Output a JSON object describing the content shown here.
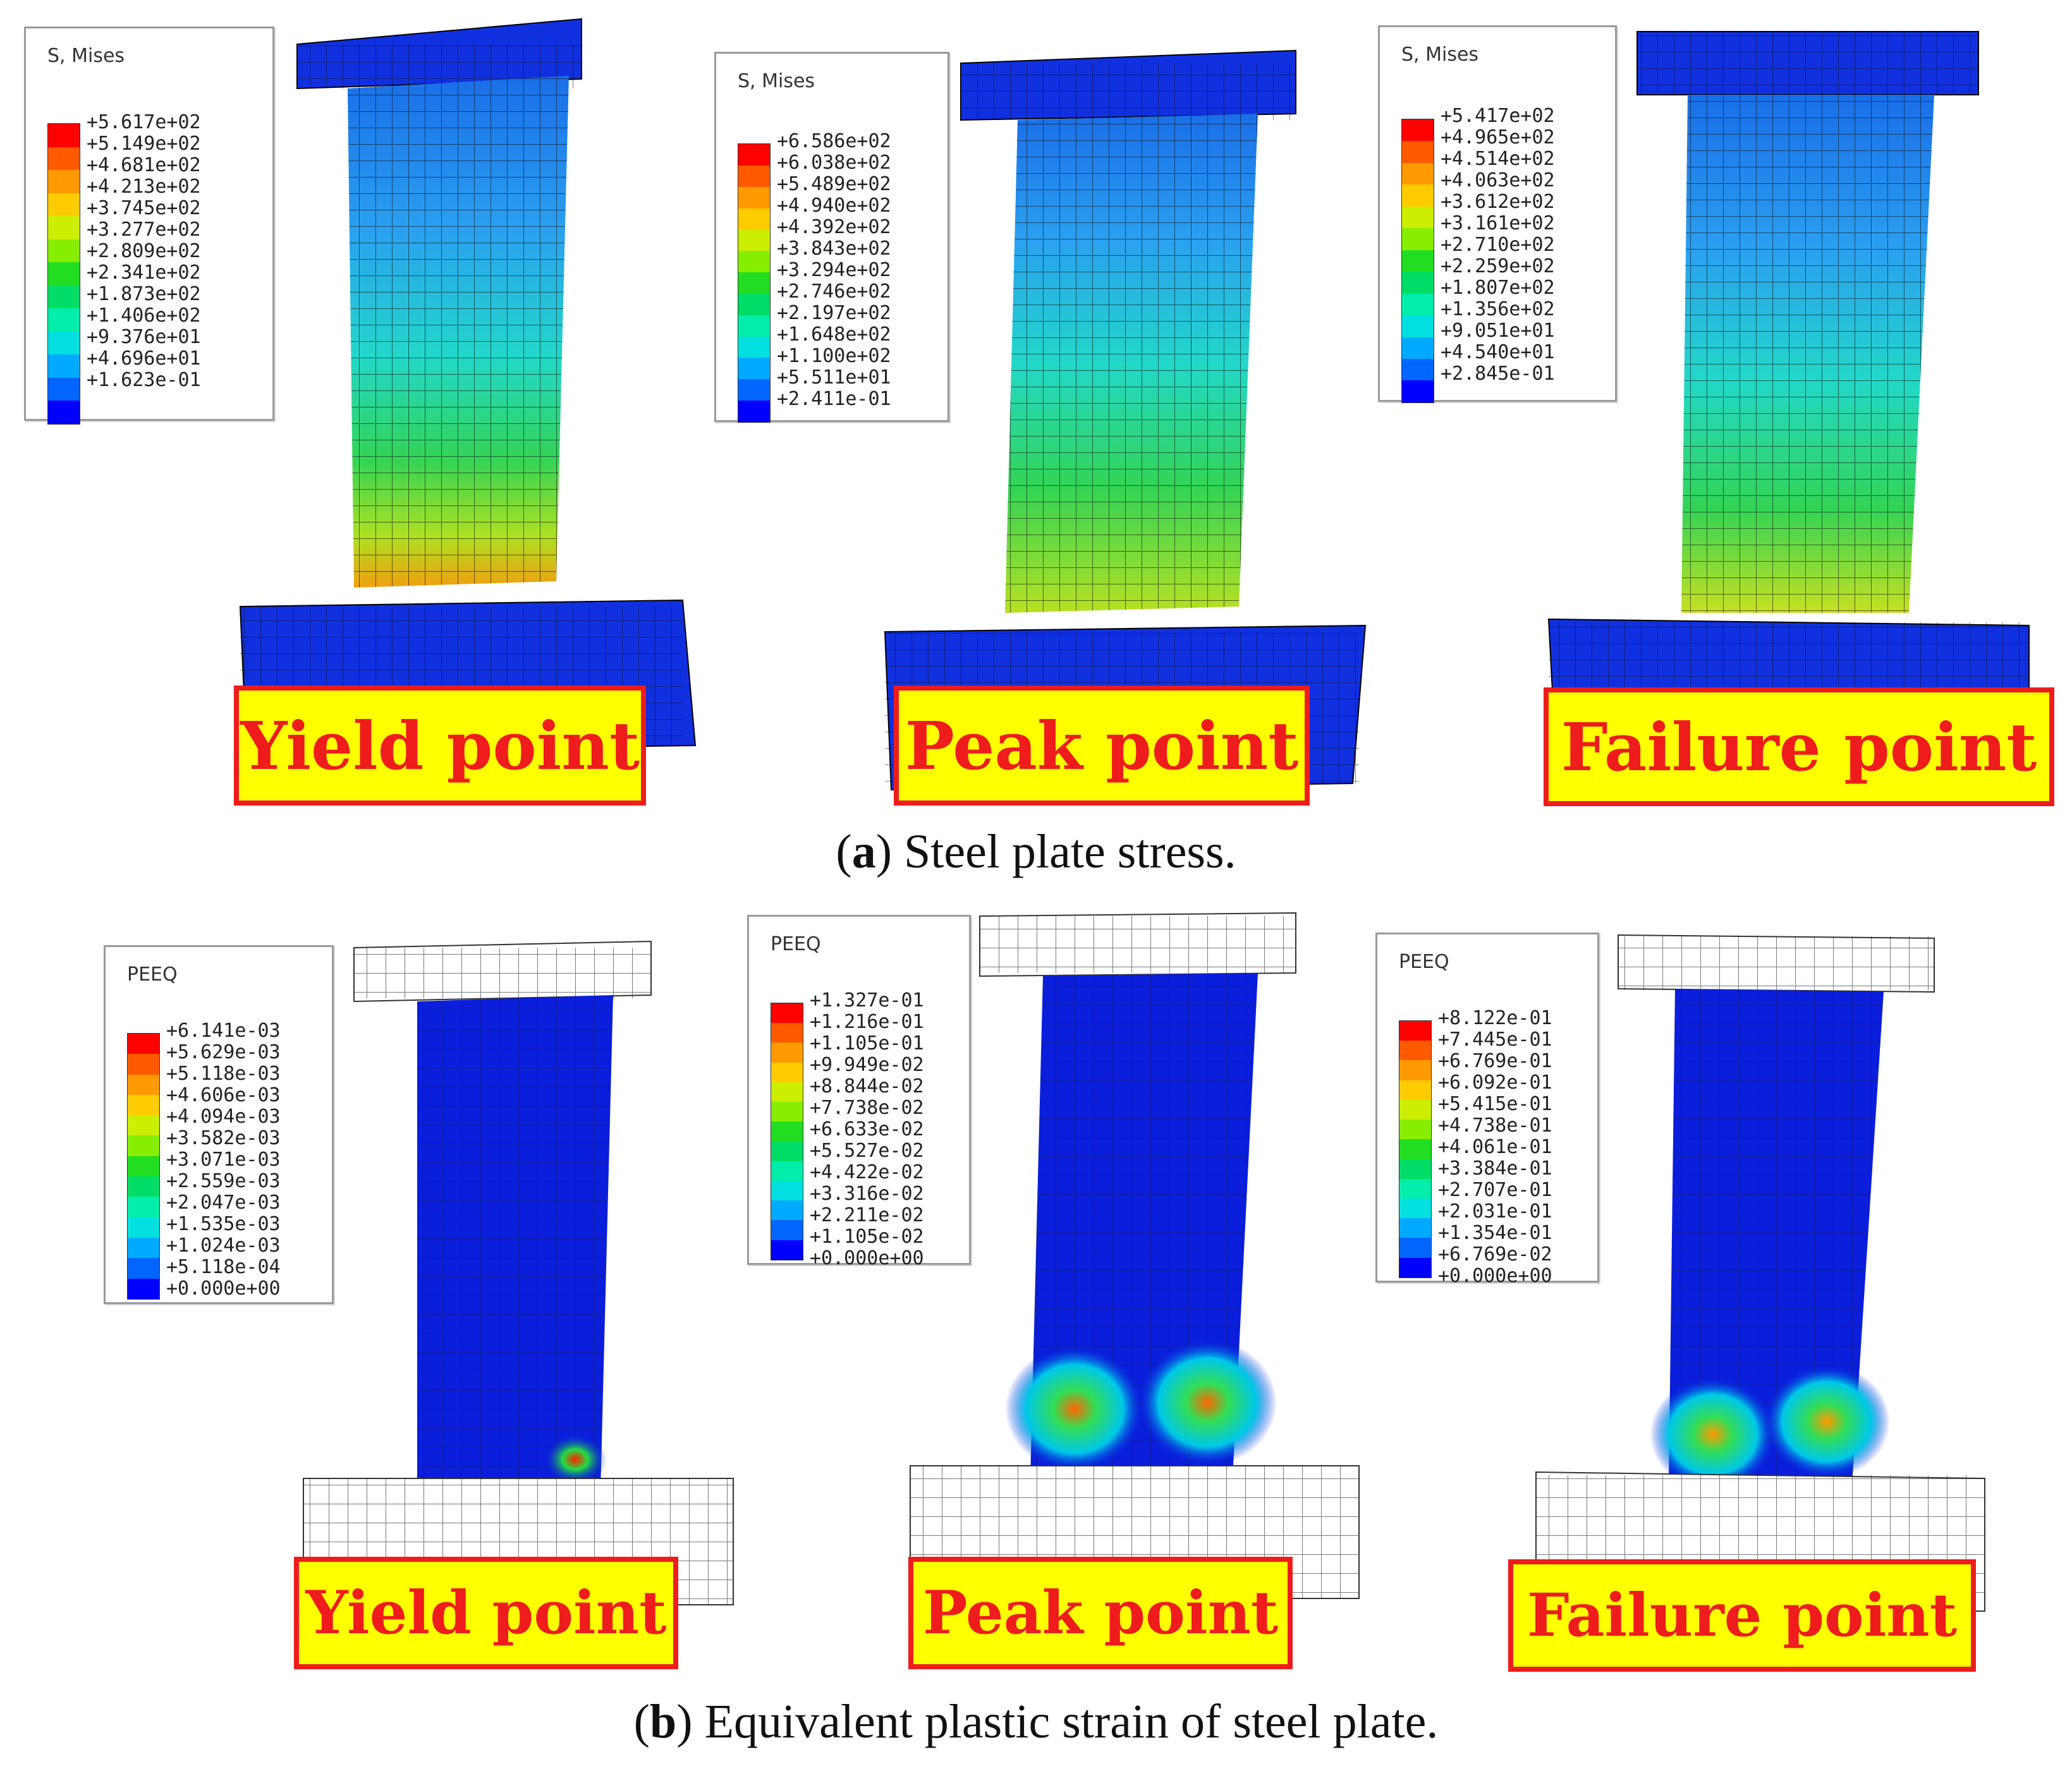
{
  "row_a": {
    "caption_letter": "a",
    "caption_text": "Steel plate stress.",
    "panels": [
      {
        "label": "Yield point",
        "legend_title": "S, Mises",
        "legend_values": [
          "+5.617e+02",
          "+5.149e+02",
          "+4.681e+02",
          "+4.213e+02",
          "+3.745e+02",
          "+3.277e+02",
          "+2.809e+02",
          "+2.341e+02",
          "+1.873e+02",
          "+1.406e+02",
          "+9.376e+01",
          "+4.696e+01",
          "+1.623e-01"
        ]
      },
      {
        "label": "Peak point",
        "legend_title": "S, Mises",
        "legend_values": [
          "+6.586e+02",
          "+6.038e+02",
          "+5.489e+02",
          "+4.940e+02",
          "+4.392e+02",
          "+3.843e+02",
          "+3.294e+02",
          "+2.746e+02",
          "+2.197e+02",
          "+1.648e+02",
          "+1.100e+02",
          "+5.511e+01",
          "+2.411e-01"
        ]
      },
      {
        "label": "Failure point",
        "legend_title": "S, Mises",
        "legend_values": [
          "+5.417e+02",
          "+4.965e+02",
          "+4.514e+02",
          "+4.063e+02",
          "+3.612e+02",
          "+3.161e+02",
          "+2.710e+02",
          "+2.259e+02",
          "+1.807e+02",
          "+1.356e+02",
          "+9.051e+01",
          "+4.540e+01",
          "+2.845e-01"
        ]
      }
    ]
  },
  "row_b": {
    "caption_letter": "b",
    "caption_text": "Equivalent plastic strain of steel plate.",
    "panels": [
      {
        "label": "Yield point",
        "legend_title": "PEEQ",
        "legend_values": [
          "+6.141e-03",
          "+5.629e-03",
          "+5.118e-03",
          "+4.606e-03",
          "+4.094e-03",
          "+3.582e-03",
          "+3.071e-03",
          "+2.559e-03",
          "+2.047e-03",
          "+1.535e-03",
          "+1.024e-03",
          "+5.118e-04",
          "+0.000e+00"
        ]
      },
      {
        "label": "Peak point",
        "legend_title": "PEEQ",
        "legend_values": [
          "+1.327e-01",
          "+1.216e-01",
          "+1.105e-01",
          "+9.949e-02",
          "+8.844e-02",
          "+7.738e-02",
          "+6.633e-02",
          "+5.527e-02",
          "+4.422e-02",
          "+3.316e-02",
          "+2.211e-02",
          "+1.105e-02",
          "+0.000e+00"
        ]
      },
      {
        "label": "Failure point",
        "legend_title": "PEEQ",
        "legend_values": [
          "+8.122e-01",
          "+7.445e-01",
          "+6.769e-01",
          "+6.092e-01",
          "+5.415e-01",
          "+4.738e-01",
          "+4.061e-01",
          "+3.384e-01",
          "+2.707e-01",
          "+2.031e-01",
          "+1.354e-01",
          "+6.769e-02",
          "+0.000e+00"
        ]
      }
    ]
  },
  "colors": {
    "legend_scale": [
      "#ff0000",
      "#ff5a00",
      "#ff9900",
      "#ffcc00",
      "#ccee00",
      "#88ee00",
      "#22dd22",
      "#00dd66",
      "#00eeaa",
      "#00e0e0",
      "#00aaff",
      "#0066ff",
      "#0000ff"
    ],
    "label_fill": "#ffff00",
    "label_text": "#ee1c1c",
    "model_blue": "#0a1edc",
    "mesh_white": "#ffffff"
  }
}
